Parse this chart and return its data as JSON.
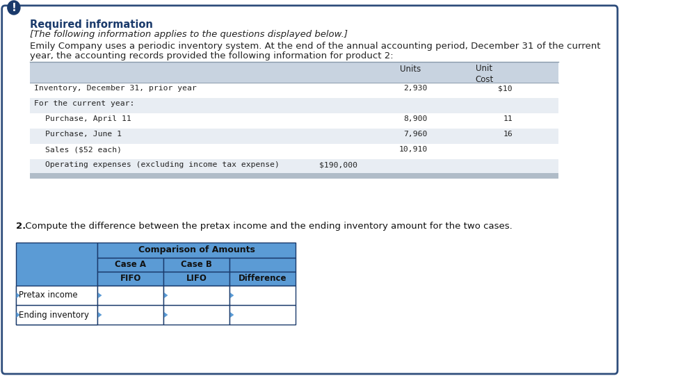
{
  "bg_color": "#ffffff",
  "outer_border_color": "#2e4d7b",
  "warning_icon_color": "#1a3a6b",
  "required_info_title": "Required information",
  "required_info_title_color": "#1a3a6b",
  "italic_text": "[The following information applies to the questions displayed below.]",
  "paragraph_text_line1": "Emily Company uses a periodic inventory system. At the end of the annual accounting period, December 31 of the current",
  "paragraph_text_line2": "year, the accounting records provided the following information for product 2:",
  "table1_header_bg": "#c8d3e0",
  "table1_row_colors": [
    "#ffffff",
    "#e8edf3",
    "#ffffff",
    "#e8edf3",
    "#ffffff",
    "#e8edf3"
  ],
  "table1_rows": [
    {
      "label": "Inventory, December 31, prior year",
      "indent": 0,
      "units": "2,930",
      "cost": "$10"
    },
    {
      "label": "For the current year:",
      "indent": 0,
      "units": "",
      "cost": ""
    },
    {
      "label": "Purchase, April 11",
      "indent": 1,
      "units": "8,900",
      "cost": "11"
    },
    {
      "label": "Purchase, June 1",
      "indent": 1,
      "units": "7,960",
      "cost": "16"
    },
    {
      "label": "Sales ($52 each)",
      "indent": 1,
      "units": "10,910",
      "cost": ""
    },
    {
      "label": "Operating expenses (excluding income tax expense)",
      "indent": 1,
      "units": "",
      "cost": ""
    }
  ],
  "opex_value": "$190,000",
  "question_text_bold": "2.",
  "question_text_normal": " Compute the difference between the pretax income and the ending inventory amount for the two cases.",
  "table2_header_main": "Comparison of Amounts",
  "table2_col1_header1": "Case A",
  "table2_col2_header1": "Case B",
  "table2_col3_header1": "",
  "table2_col1_header2": "FIFO",
  "table2_col2_header2": "LIFO",
  "table2_col3_header2": "Difference",
  "table2_rows": [
    "Pretax income",
    "Ending inventory"
  ],
  "table2_header_bg": "#5b9bd5",
  "table2_border_color": "#1a3a6b",
  "monospace_font": "monospace",
  "normal_font": "DejaVu Sans"
}
